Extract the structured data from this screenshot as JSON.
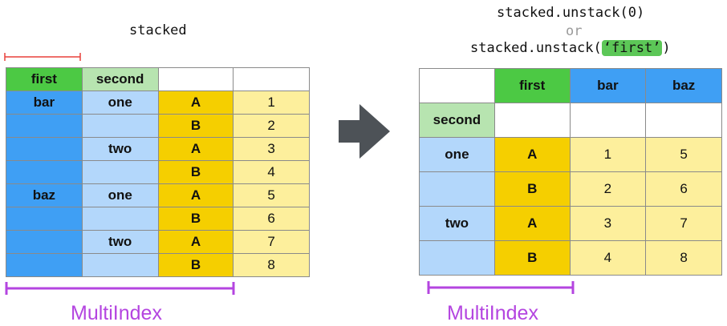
{
  "left": {
    "title": "stacked",
    "columns": [
      "first",
      "second",
      "",
      ""
    ],
    "rows": [
      {
        "first": "bar",
        "second": "one",
        "key": "A",
        "value": "1"
      },
      {
        "first": "",
        "second": "",
        "key": "B",
        "value": "2"
      },
      {
        "first": "",
        "second": "two",
        "key": "A",
        "value": "3"
      },
      {
        "first": "",
        "second": "",
        "key": "B",
        "value": "4"
      },
      {
        "first": "baz",
        "second": "one",
        "key": "A",
        "value": "5"
      },
      {
        "first": "",
        "second": "",
        "key": "B",
        "value": "6"
      },
      {
        "first": "",
        "second": "two",
        "key": "A",
        "value": "7"
      },
      {
        "first": "",
        "second": "",
        "key": "B",
        "value": "8"
      }
    ],
    "multiindex_label": "MultiIndex"
  },
  "right": {
    "code_line1": "stacked.unstack(0)",
    "or_text": "or",
    "code_line2_prefix": "stacked.unstack(",
    "code_line2_arg": "‘first’",
    "code_line2_suffix": ")",
    "header_first": "first",
    "header_bar": "bar",
    "header_baz": "baz",
    "header_second": "second",
    "rows": [
      {
        "second": "one",
        "key": "A",
        "bar": "1",
        "baz": "5"
      },
      {
        "second": "",
        "key": "B",
        "bar": "2",
        "baz": "6"
      },
      {
        "second": "two",
        "key": "A",
        "bar": "3",
        "baz": "7"
      },
      {
        "second": "",
        "key": "B",
        "bar": "4",
        "baz": "8"
      }
    ],
    "multiindex_label": "MultiIndex"
  },
  "colors": {
    "green": "#4cc944",
    "light_green": "#b7e4b0",
    "blue": "#3f9ff4",
    "light_blue": "#b3d7fb",
    "gold": "#f5cf00",
    "light_yellow": "#fdef9c",
    "highlight": "#5cc757",
    "bracket": "#b445e0",
    "width_marker": "#e8403a",
    "arrow": "#4d5257"
  },
  "icons": {
    "arrow": "right-arrow-icon"
  }
}
